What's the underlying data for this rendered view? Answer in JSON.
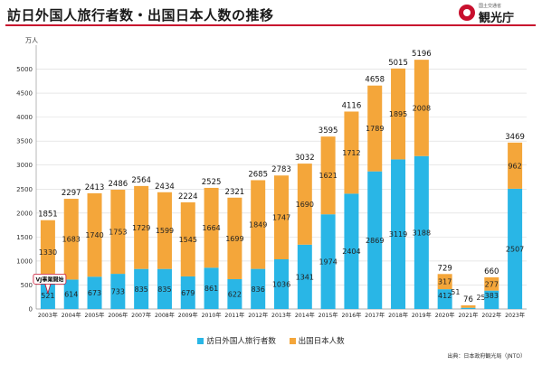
{
  "header": {
    "title": "訪日外国人旅行者数・出国日本人数の推移",
    "logo_sub": "国土交通省",
    "logo_main": "観光庁"
  },
  "source": "出典：日本政府観光局（JNTO）",
  "colors": {
    "inbound": "#29b6e6",
    "outbound": "#f4a63a",
    "accent": "#c8102e"
  },
  "chart_data": {
    "type": "bar",
    "stacked": true,
    "unit_label": "万人",
    "categories": [
      "2003年",
      "2004年",
      "2005年",
      "2006年",
      "2007年",
      "2008年",
      "2009年",
      "2010年",
      "2011年",
      "2012年",
      "2013年",
      "2014年",
      "2015年",
      "2016年",
      "2017年",
      "2018年",
      "2019年",
      "2020年",
      "2021年",
      "2022年",
      "2023年"
    ],
    "series": [
      {
        "name": "訪日外国人旅行者数",
        "values": [
          521,
          614,
          673,
          733,
          835,
          835,
          679,
          861,
          622,
          836,
          1036,
          1341,
          1974,
          2404,
          2869,
          3119,
          3188,
          412,
          25,
          383,
          2507
        ]
      },
      {
        "name": "出国日本人数",
        "values": [
          1330,
          1683,
          1740,
          1753,
          1729,
          1599,
          1545,
          1664,
          1699,
          1849,
          1747,
          1690,
          1621,
          1712,
          1789,
          1895,
          2008,
          317,
          51,
          277,
          962
        ]
      }
    ],
    "totals": [
      1851,
      2297,
      2413,
      2486,
      2564,
      2434,
      2224,
      2525,
      2321,
      2685,
      2783,
      3032,
      3595,
      4116,
      4658,
      5015,
      5196,
      729,
      76,
      660,
      3469
    ],
    "ylim": [
      0,
      5500
    ],
    "yticks": [
      0,
      500,
      1000,
      1500,
      2000,
      2500,
      3000,
      3500,
      4000,
      4500,
      5000
    ],
    "grid": true,
    "legend_position": "bottom-center",
    "annotation": {
      "category": "2003年",
      "text": "VJ事業開始"
    }
  }
}
